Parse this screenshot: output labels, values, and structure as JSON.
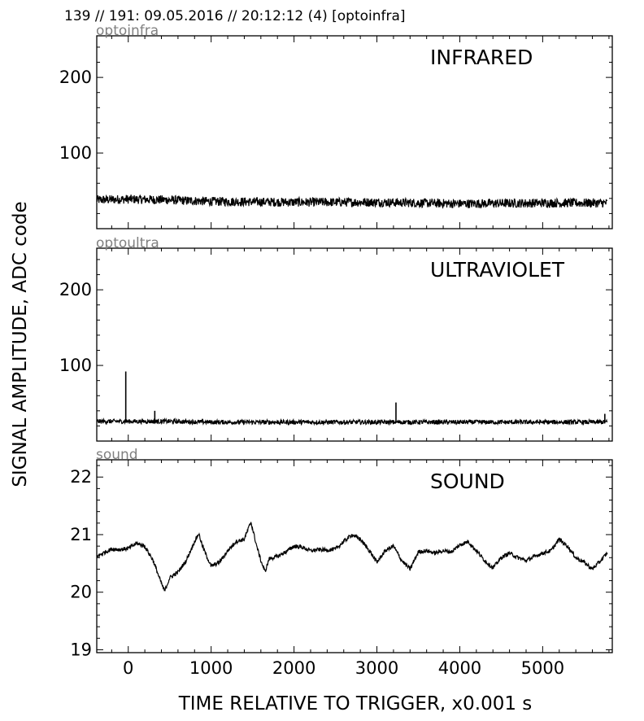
{
  "header": "139 // 191:   09.05.2016 // 20:12:12 (4)  [optoinfra]",
  "ylabel": "SIGNAL AMPLITUDE,  ADC code",
  "xlabel": "TIME RELATIVE TO TRIGGER,   x0.001 s",
  "chart_data": [
    {
      "type": "line",
      "source": "optoinfra",
      "title": "INFRARED",
      "xlim": [
        -380,
        5840
      ],
      "ylim": [
        0,
        255
      ],
      "yticks": [
        "100",
        "200"
      ],
      "ytick_values": [
        100,
        200
      ],
      "baseline": {
        "x": [
          -380,
          0,
          500,
          1000,
          2000,
          3000,
          4000,
          5000,
          5780
        ],
        "y": [
          38,
          39,
          38,
          36,
          35,
          35,
          33,
          34,
          34
        ]
      },
      "noise_amplitude": 6,
      "spikes": []
    },
    {
      "type": "line",
      "source": "optoultra",
      "title": "ULTRAVIOLET",
      "xlim": [
        -380,
        5840
      ],
      "ylim": [
        0,
        255
      ],
      "yticks": [
        "100",
        "200"
      ],
      "ytick_values": [
        100,
        200
      ],
      "baseline": {
        "x": [
          -380,
          0,
          500,
          1000,
          2000,
          3000,
          4000,
          5000,
          5780
        ],
        "y": [
          26,
          26,
          26,
          25,
          25,
          25,
          25,
          25,
          25
        ]
      },
      "noise_amplitude": 3,
      "spikes": [
        {
          "x": -30,
          "y": 92
        },
        {
          "x": 3230,
          "y": 51
        },
        {
          "x": 320,
          "y": 40
        },
        {
          "x": 5750,
          "y": 36
        }
      ]
    },
    {
      "type": "line",
      "source": "sound",
      "title": "SOUND",
      "xlim": [
        -380,
        5840
      ],
      "ylim": [
        18.95,
        22.3
      ],
      "yticks": [
        "19",
        "20",
        "21",
        "22"
      ],
      "ytick_values": [
        19,
        20,
        21,
        22
      ],
      "baseline": {
        "x": [
          -380,
          -300,
          -200,
          -100,
          0,
          100,
          200,
          300,
          400,
          440,
          500,
          600,
          700,
          800,
          850,
          900,
          1000,
          1100,
          1200,
          1300,
          1400,
          1480,
          1550,
          1600,
          1650,
          1700,
          1800,
          1900,
          2000,
          2100,
          2200,
          2300,
          2400,
          2500,
          2600,
          2700,
          2800,
          2900,
          3000,
          3100,
          3200,
          3300,
          3400,
          3500,
          3600,
          3700,
          3800,
          3900,
          4000,
          4100,
          4200,
          4300,
          4400,
          4500,
          4600,
          4700,
          4800,
          4900,
          5000,
          5100,
          5200,
          5300,
          5400,
          5500,
          5600,
          5700,
          5780
        ],
        "y": [
          20.62,
          20.68,
          20.75,
          20.74,
          20.76,
          20.85,
          20.8,
          20.55,
          20.15,
          20.02,
          20.25,
          20.35,
          20.55,
          20.88,
          21.02,
          20.78,
          20.45,
          20.52,
          20.72,
          20.88,
          20.92,
          21.22,
          20.8,
          20.55,
          20.35,
          20.58,
          20.62,
          20.7,
          20.8,
          20.78,
          20.72,
          20.74,
          20.73,
          20.75,
          20.88,
          21.0,
          20.92,
          20.74,
          20.52,
          20.72,
          20.8,
          20.55,
          20.4,
          20.7,
          20.72,
          20.68,
          20.72,
          20.7,
          20.82,
          20.88,
          20.72,
          20.55,
          20.42,
          20.6,
          20.68,
          20.6,
          20.55,
          20.62,
          20.68,
          20.72,
          20.92,
          20.8,
          20.6,
          20.52,
          20.4,
          20.55,
          20.68
        ]
      },
      "noise_amplitude": 0.035,
      "spikes": []
    }
  ],
  "xticks": [
    "0",
    "1000",
    "2000",
    "3000",
    "4000",
    "5000"
  ],
  "xtick_values": [
    0,
    1000,
    2000,
    3000,
    4000,
    5000
  ]
}
